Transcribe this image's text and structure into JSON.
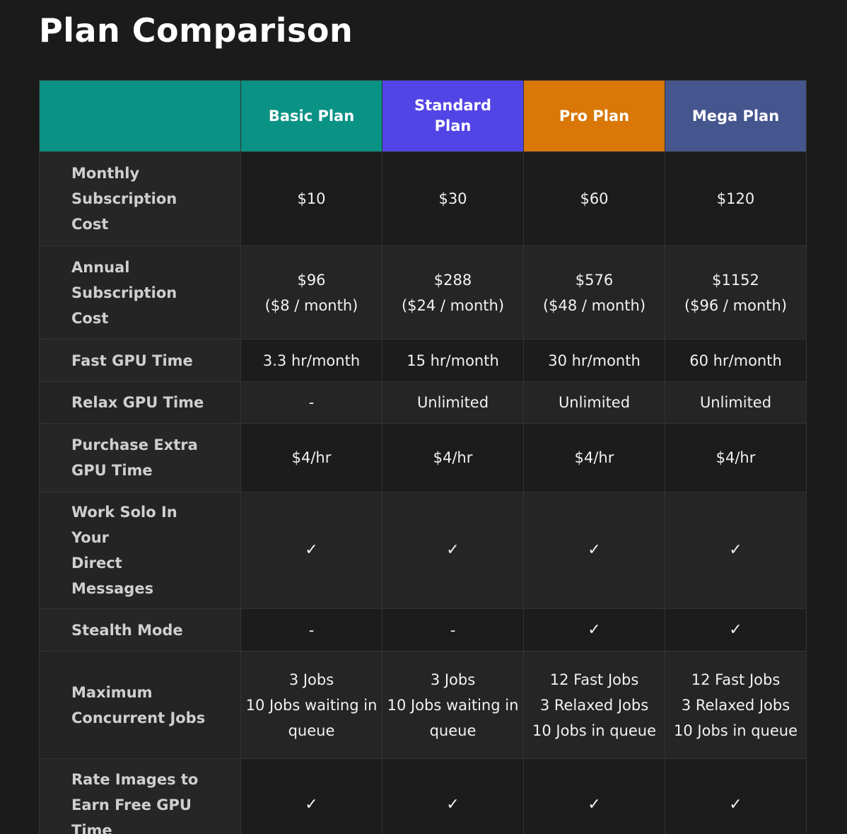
{
  "page": {
    "title": "Plan Comparison"
  },
  "plans": [
    {
      "name": "Basic Plan",
      "color": "#0a9285"
    },
    {
      "name": "Standard Plan",
      "color": "#5245e6"
    },
    {
      "name": "Pro Plan",
      "color": "#d97707"
    },
    {
      "name": "Mega Plan",
      "color": "#45568e"
    }
  ],
  "rows": [
    {
      "label": "Monthly Subscription Cost",
      "values": [
        "$10",
        "$30",
        "$60",
        "$120"
      ]
    },
    {
      "label": "Annual Subscription Cost",
      "values": [
        "$96\n($8 / month)",
        "$288\n($24 / month)",
        "$576\n($48 / month)",
        "$1152\n($96 / month)"
      ]
    },
    {
      "label": "Fast GPU Time",
      "values": [
        "3.3 hr/month",
        "15 hr/month",
        "30 hr/month",
        "60 hr/month"
      ]
    },
    {
      "label": "Relax GPU Time",
      "values": [
        "-",
        "Unlimited",
        "Unlimited",
        "Unlimited"
      ]
    },
    {
      "label": "Purchase Extra GPU Time",
      "values": [
        "$4/hr",
        "$4/hr",
        "$4/hr",
        "$4/hr"
      ]
    },
    {
      "label": "Work Solo In Your\nDirect Messages",
      "values": [
        "✓",
        "✓",
        "✓",
        "✓"
      ]
    },
    {
      "label": "Stealth Mode",
      "values": [
        "-",
        "-",
        "✓",
        "✓"
      ]
    },
    {
      "label": "Maximum Concurrent Jobs",
      "values": [
        "3 Jobs\n10 Jobs waiting in queue",
        "3 Jobs\n10 Jobs waiting in queue",
        "12 Fast Jobs\n3 Relaxed Jobs\n10 Jobs in queue",
        "12 Fast Jobs\n3 Relaxed Jobs\n10 Jobs in queue"
      ]
    },
    {
      "label": "Rate Images to Earn Free GPU Time",
      "values": [
        "✓",
        "✓",
        "✓",
        "✓"
      ]
    }
  ]
}
